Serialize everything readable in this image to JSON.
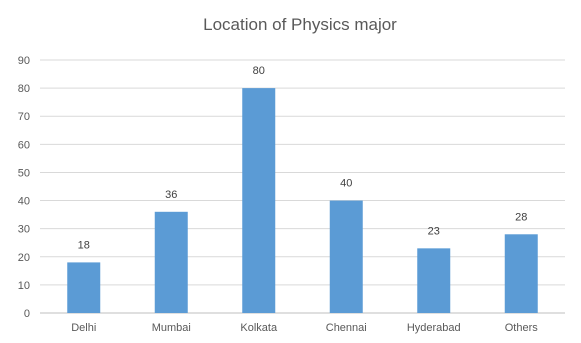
{
  "chart_data": {
    "type": "bar",
    "title": "Location of Physics major",
    "categories": [
      "Delhi",
      "Mumbai",
      "Kolkata",
      "Chennai",
      "Hyderabad",
      "Others"
    ],
    "values": [
      18,
      36,
      80,
      40,
      23,
      28
    ],
    "data_labels": [
      "18",
      "36",
      "80",
      "40",
      "23",
      "28"
    ],
    "xlabel": "",
    "ylabel": "",
    "ylim": [
      0,
      90
    ],
    "yticks": [
      0,
      10,
      20,
      30,
      40,
      50,
      60,
      70,
      80,
      90
    ],
    "grid": true,
    "legend": "none",
    "bar_color": "#5b9bd5"
  }
}
